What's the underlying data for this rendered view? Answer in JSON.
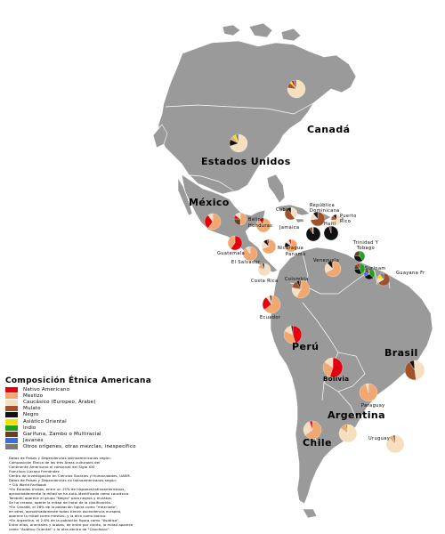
{
  "legend": {
    "title": "Composición Étnica Americana",
    "items": [
      {
        "label": "Nativo Americano",
        "color": "#e3000f"
      },
      {
        "label": "Mestizo",
        "color": "#f0a870"
      },
      {
        "label": "Caucásico (Europeo, Árabe)",
        "color": "#f6dfc0"
      },
      {
        "label": "Mulato",
        "color": "#a0522d"
      },
      {
        "label": "Negro",
        "color": "#111111"
      },
      {
        "label": "Asiático Oriental",
        "color": "#f2e200"
      },
      {
        "label": "Indio",
        "color": "#1fa01f"
      },
      {
        "label": "Garífuna, Zambo o Multiracial",
        "color": "#6b3f1c"
      },
      {
        "label": "Javanés",
        "color": "#3a6fd8"
      },
      {
        "label": "Otros orígenes, otras mezclas, inespecífico",
        "color": "#7a7a7a"
      }
    ]
  },
  "countries_large": {
    "canada": "Canadá",
    "usa": "Estados Unidos",
    "mexico": "México",
    "peru": "Perú",
    "brasil": "Brasil",
    "bolivia": "Bolivia",
    "argentina": "Argentina",
    "chile": "Chile"
  },
  "countries_small": {
    "cuba": "Cuba",
    "haiti": "Haití",
    "jamaica": "Jamaica",
    "dominicana": "República Dominicana",
    "puerto_rico": "Puerto Rico",
    "belice": "Belice",
    "honduras": "Honduras",
    "guatemala": "Guatemala",
    "el_salvador": "El Salvador",
    "nicaragua": "Nicaragua",
    "costa_rica": "Costa Rica",
    "panama": "Panamá",
    "venezuela": "Venezuela",
    "colombia": "Colombia",
    "ecuador": "Ecuador",
    "trinidad": "Trinidad Y Tobago",
    "surinam": "Surinam",
    "guyana": "Guyana",
    "guayana_fr": "Guayana Fr",
    "paraguay": "Paraguay",
    "uruguay": "Uruguay"
  },
  "notes": [
    "Datos de Países y Dependencias latinoamericanas según:",
    "Composición Étnica de las tres Áreas culturales del",
    "Continente Americano al comienzo del Siglo XXI",
    "Francisco Lizcano Fernández",
    "Centro de Investigación en Ciencias Sociales y Humanidades, UAEM.",
    "Datos de Países y Dependencias no latinoamericanos según:",
    "• CIA World Factbook",
    "•En Estados Unidos, entre un 15% de hispanos/latinoamericanos,",
    "aproximadamente la mitad se ha auto-identificado como caucásico.",
    "También aparece el grupo \"Negro\" para negros y mulatos.",
    "Se ha creado, aparte la mitad del total de la clasificación.",
    "•En Canadá, el 26% de la población figura como \"mezclado\",",
    "en otros, aproximadamente todos tienen ascendencia europea,",
    "aparece la mitad como mestizo, y la otra como blanco.",
    "•En Argentina, el 2.6% de la población figura como \"Asiática\"",
    "Entre ellos, orientales y árabes, de entre por ciento, la mitad aparece",
    "como \"Asiático Oriental\" y la otra dentro de \"Caucásico\"."
  ],
  "pies": [
    {
      "country": "Canadá",
      "slices": [
        {
          "color": "#f6dfc0",
          "value": 77
        },
        {
          "color": "#a0522d",
          "value": 10
        },
        {
          "color": "#f2e200",
          "value": 4
        },
        {
          "color": "#e3000f",
          "value": 4
        },
        {
          "color": "#7a7a7a",
          "value": 5
        }
      ]
    },
    {
      "country": "Estados Unidos",
      "slices": [
        {
          "color": "#f6dfc0",
          "value": 70
        },
        {
          "color": "#111111",
          "value": 12
        },
        {
          "color": "#f0a870",
          "value": 8
        },
        {
          "color": "#f2e200",
          "value": 5
        },
        {
          "color": "#7a7a7a",
          "value": 5
        }
      ]
    },
    {
      "country": "México",
      "slices": [
        {
          "color": "#f0a870",
          "value": 60
        },
        {
          "color": "#e3000f",
          "value": 30
        },
        {
          "color": "#f6dfc0",
          "value": 10
        }
      ]
    },
    {
      "country": "Cuba",
      "slices": [
        {
          "color": "#f6dfc0",
          "value": 40
        },
        {
          "color": "#a0522d",
          "value": 50
        },
        {
          "color": "#111111",
          "value": 10
        }
      ]
    },
    {
      "country": "República Dominicana",
      "slices": [
        {
          "color": "#a0522d",
          "value": 73
        },
        {
          "color": "#f6dfc0",
          "value": 16
        },
        {
          "color": "#111111",
          "value": 11
        }
      ]
    },
    {
      "country": "Puerto Rico",
      "slices": [
        {
          "color": "#f6dfc0",
          "value": 75
        },
        {
          "color": "#a0522d",
          "value": 15
        },
        {
          "color": "#111111",
          "value": 10
        }
      ]
    },
    {
      "country": "Haití",
      "slices": [
        {
          "color": "#111111",
          "value": 95
        },
        {
          "color": "#a0522d",
          "value": 5
        }
      ]
    },
    {
      "country": "Jamaica",
      "slices": [
        {
          "color": "#111111",
          "value": 91
        },
        {
          "color": "#a0522d",
          "value": 7
        },
        {
          "color": "#f6dfc0",
          "value": 2
        }
      ]
    },
    {
      "country": "Belice",
      "slices": [
        {
          "color": "#f0a870",
          "value": 50
        },
        {
          "color": "#6b3f1c",
          "value": 25
        },
        {
          "color": "#e3000f",
          "value": 10
        },
        {
          "color": "#f6dfc0",
          "value": 15
        }
      ]
    },
    {
      "country": "Honduras",
      "slices": [
        {
          "color": "#f0a870",
          "value": 90
        },
        {
          "color": "#e3000f",
          "value": 7
        },
        {
          "color": "#111111",
          "value": 3
        }
      ]
    },
    {
      "country": "Guatemala",
      "slices": [
        {
          "color": "#e3000f",
          "value": 60
        },
        {
          "color": "#f0a870",
          "value": 40
        }
      ]
    },
    {
      "country": "El Salvador",
      "slices": [
        {
          "color": "#f0a870",
          "value": 90
        },
        {
          "color": "#f6dfc0",
          "value": 9
        },
        {
          "color": "#e3000f",
          "value": 1
        }
      ]
    },
    {
      "country": "Nicaragua",
      "slices": [
        {
          "color": "#f0a870",
          "value": 70
        },
        {
          "color": "#f6dfc0",
          "value": 17
        },
        {
          "color": "#111111",
          "value": 9
        },
        {
          "color": "#e3000f",
          "value": 4
        }
      ]
    },
    {
      "country": "Costa Rica",
      "slices": [
        {
          "color": "#f6dfc0",
          "value": 80
        },
        {
          "color": "#f0a870",
          "value": 15
        },
        {
          "color": "#111111",
          "value": 5
        }
      ]
    },
    {
      "country": "Panamá",
      "slices": [
        {
          "color": "#f0a870",
          "value": 70
        },
        {
          "color": "#111111",
          "value": 14
        },
        {
          "color": "#f6dfc0",
          "value": 10
        },
        {
          "color": "#e3000f",
          "value": 6
        }
      ]
    },
    {
      "country": "Colombia",
      "slices": [
        {
          "color": "#f0a870",
          "value": 58
        },
        {
          "color": "#f6dfc0",
          "value": 20
        },
        {
          "color": "#a0522d",
          "value": 14
        },
        {
          "color": "#111111",
          "value": 5
        },
        {
          "color": "#e3000f",
          "value": 3
        }
      ]
    },
    {
      "country": "Venezuela",
      "slices": [
        {
          "color": "#f0a870",
          "value": 67
        },
        {
          "color": "#f6dfc0",
          "value": 21
        },
        {
          "color": "#111111",
          "value": 10
        },
        {
          "color": "#e3000f",
          "value": 2
        }
      ]
    },
    {
      "country": "Trinidad Y Tobago",
      "slices": [
        {
          "color": "#1fa01f",
          "value": 40
        },
        {
          "color": "#111111",
          "value": 38
        },
        {
          "color": "#6b3f1c",
          "value": 22
        }
      ]
    },
    {
      "country": "Guyana",
      "slices": [
        {
          "color": "#1fa01f",
          "value": 44
        },
        {
          "color": "#111111",
          "value": 30
        },
        {
          "color": "#6b3f1c",
          "value": 17
        },
        {
          "color": "#e3000f",
          "value": 9
        }
      ]
    },
    {
      "country": "Surinam",
      "slices": [
        {
          "color": "#1fa01f",
          "value": 37
        },
        {
          "color": "#111111",
          "value": 31
        },
        {
          "color": "#3a6fd8",
          "value": 15
        },
        {
          "color": "#6b3f1c",
          "value": 12
        },
        {
          "color": "#7a7a7a",
          "value": 5
        }
      ]
    },
    {
      "country": "Guayana Fr",
      "slices": [
        {
          "color": "#a0522d",
          "value": 66
        },
        {
          "color": "#f6dfc0",
          "value": 12
        },
        {
          "color": "#f2e200",
          "value": 12
        },
        {
          "color": "#7a7a7a",
          "value": 10
        }
      ]
    },
    {
      "country": "Ecuador",
      "slices": [
        {
          "color": "#f0a870",
          "value": 65
        },
        {
          "color": "#e3000f",
          "value": 25
        },
        {
          "color": "#f6dfc0",
          "value": 7
        },
        {
          "color": "#111111",
          "value": 3
        }
      ]
    },
    {
      "country": "Perú",
      "slices": [
        {
          "color": "#e3000f",
          "value": 45
        },
        {
          "color": "#f0a870",
          "value": 37
        },
        {
          "color": "#f6dfc0",
          "value": 15
        },
        {
          "color": "#111111",
          "value": 3
        }
      ]
    },
    {
      "country": "Brasil",
      "slices": [
        {
          "color": "#f6dfc0",
          "value": 48
        },
        {
          "color": "#a0522d",
          "value": 43
        },
        {
          "color": "#111111",
          "value": 8
        },
        {
          "color": "#f2e200",
          "value": 1
        }
      ]
    },
    {
      "country": "Bolivia",
      "slices": [
        {
          "color": "#e3000f",
          "value": 55
        },
        {
          "color": "#f0a870",
          "value": 30
        },
        {
          "color": "#f6dfc0",
          "value": 15
        }
      ]
    },
    {
      "country": "Paraguay",
      "slices": [
        {
          "color": "#f0a870",
          "value": 95
        },
        {
          "color": "#f6dfc0",
          "value": 5
        }
      ]
    },
    {
      "country": "Chile",
      "slices": [
        {
          "color": "#f0a870",
          "value": 65
        },
        {
          "color": "#f6dfc0",
          "value": 30
        },
        {
          "color": "#e3000f",
          "value": 5
        }
      ]
    },
    {
      "country": "Argentina",
      "slices": [
        {
          "color": "#f6dfc0",
          "value": 85
        },
        {
          "color": "#f0a870",
          "value": 11
        },
        {
          "color": "#e3000f",
          "value": 2
        },
        {
          "color": "#f2e200",
          "value": 2
        }
      ]
    },
    {
      "country": "Uruguay",
      "slices": [
        {
          "color": "#f6dfc0",
          "value": 88
        },
        {
          "color": "#f0a870",
          "value": 8
        },
        {
          "color": "#a0522d",
          "value": 4
        }
      ]
    }
  ]
}
